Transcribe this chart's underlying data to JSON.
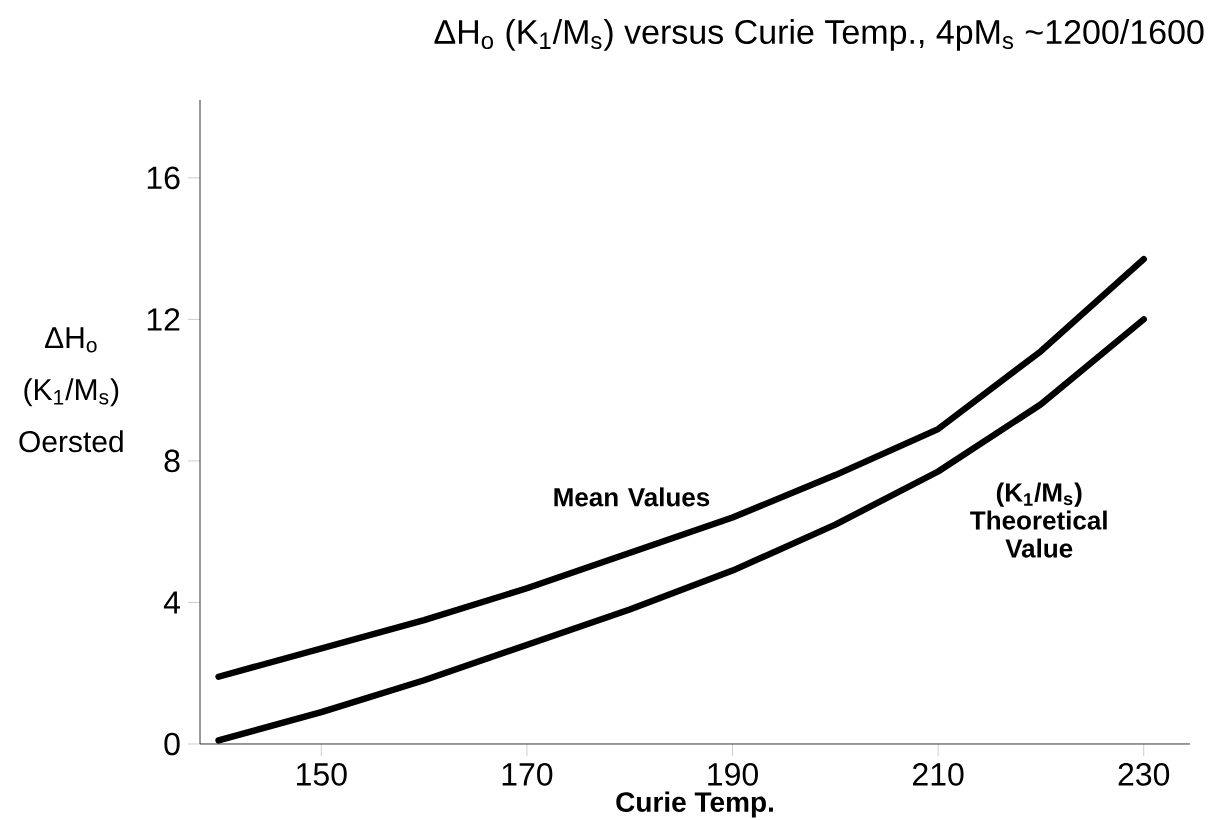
{
  "chart_data": {
    "type": "line",
    "title": "ΔH$_{o}$ (K$_{1}$/M$_{s}$) versus Curie Temp., 4pM$_{s}$ ~1200/1600",
    "xlabel": "Curie Temp.",
    "ylabel": "ΔH$_{o}$ (K$_{1}$/M$_{s}$) Oersted",
    "x": [
      140,
      150,
      160,
      170,
      180,
      190,
      200,
      210,
      220,
      230
    ],
    "series": [
      {
        "name": "Mean Values",
        "color": "#000000",
        "values": [
          1.9,
          2.7,
          3.5,
          4.4,
          5.4,
          6.4,
          7.6,
          8.9,
          11.1,
          13.7
        ]
      },
      {
        "name": "(K$_{1}$/M$_{s}$) Theoretical Value",
        "color": "#000000",
        "values": [
          0.1,
          0.9,
          1.8,
          2.8,
          3.8,
          4.9,
          6.2,
          7.7,
          9.6,
          12.0
        ]
      }
    ],
    "xlim": [
      138.2,
      234.5
    ],
    "ylim": [
      0,
      18.2
    ],
    "xticks": [
      150,
      170,
      190,
      210,
      230
    ],
    "yticks": [
      0,
      4,
      8,
      12,
      16
    ],
    "grid": false,
    "legend": false,
    "marker": "none",
    "line_style": "solid"
  }
}
